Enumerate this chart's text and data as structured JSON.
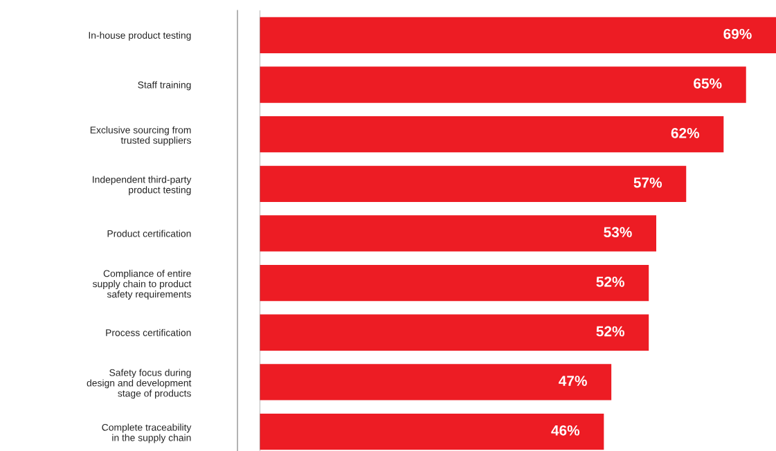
{
  "chart_data": {
    "type": "bar",
    "orientation": "horizontal",
    "categories": [
      "In-house product testing",
      "Staff training",
      "Exclusive sourcing from\ntrusted suppliers",
      "Independent third-party\nproduct testing",
      "Product certification",
      "Compliance of entire\nsupply chain to product\nsafety requirements",
      "Process certification",
      "Safety focus during\ndesign and development\nstage of products",
      "Complete traceability\nin the supply chain"
    ],
    "values": [
      69,
      65,
      62,
      57,
      53,
      52,
      52,
      47,
      46
    ],
    "value_labels": [
      "69%",
      "65%",
      "62%",
      "57%",
      "53%",
      "52%",
      "52%",
      "47%",
      "46%"
    ],
    "color": "#ed1c24",
    "grid": false,
    "legend": false
  }
}
